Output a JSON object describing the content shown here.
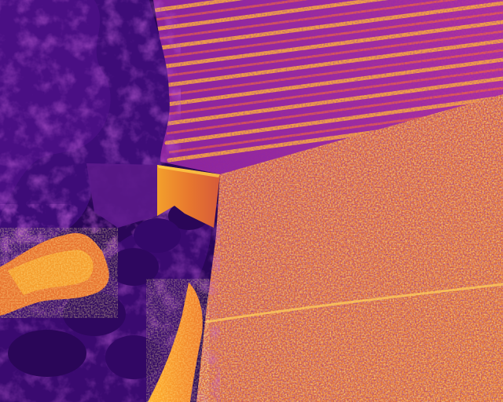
{
  "image": {
    "kind": "aerial thermal image",
    "palette": "inferno",
    "colors": {
      "coldest": "#1a0030",
      "cold": "#3a0a6e",
      "cool": "#5c1a8c",
      "mid": "#a23ab0",
      "warm": "#e0603a",
      "hot": "#f59a2a",
      "hottest": "#ffd84a"
    },
    "scene_regions": [
      "tree-canopy",
      "plowed-furrows-field",
      "textured-field",
      "pale-clearing",
      "road-edge",
      "concrete-slab"
    ]
  }
}
